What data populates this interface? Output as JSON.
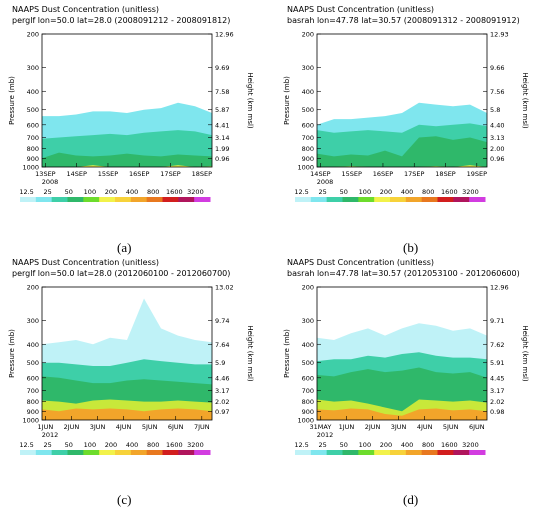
{
  "colors": {
    "levels": [
      "#bff2f7",
      "#7fe6ee",
      "#3ecfa8",
      "#2fb86a",
      "#6ddc2c",
      "#f2f24a",
      "#f7d23a",
      "#f2a52a",
      "#e8781f",
      "#d21e1e",
      "#b0155c",
      "#d23ce0"
    ]
  },
  "chart_data": [
    {
      "type": "heatmap",
      "panel_label": "(a)",
      "title": "NAAPS Dust Concentration (unitless)",
      "subtitle": "perglf lon=50.0 lat=28.0 (2008091212 - 2008091812)",
      "ylabel": "Pressure (mb)",
      "y2label": "Height (km msl)",
      "ylim": [
        1000,
        200
      ],
      "pressure_ticks": [
        "200",
        "300",
        "400",
        "500",
        "600",
        "700",
        "800",
        "900",
        "1000"
      ],
      "height_ticks": [
        "12.96",
        "9.69",
        "7.58",
        "5.87",
        "4.41",
        "3.14",
        "1.99",
        "0.96"
      ],
      "x_ticks": [
        "13SEP",
        "14SEP",
        "15SEP",
        "16SEP",
        "17SEP",
        "18SEP"
      ],
      "x_year": "2008",
      "x_positions": [
        0,
        0.1,
        0.2,
        0.3,
        0.4,
        0.5,
        0.6,
        0.7,
        0.8,
        0.9,
        1.0
      ],
      "layer_tops_mb": [
        [
          540,
          540,
          530,
          510,
          510,
          520,
          500,
          490,
          460,
          480,
          520
        ],
        [
          710,
          700,
          690,
          680,
          670,
          680,
          660,
          650,
          640,
          650,
          680
        ],
        [
          900,
          840,
          870,
          880,
          870,
          850,
          870,
          880,
          860,
          870,
          880
        ],
        [
          1000,
          1000,
          1000,
          980,
          1000,
          1000,
          1000,
          1000,
          980,
          1000,
          990
        ]
      ],
      "legend_values": [
        "12.5",
        "25",
        "50",
        "100",
        "200",
        "400",
        "800",
        "1600",
        "3200"
      ]
    },
    {
      "type": "heatmap",
      "panel_label": "(b)",
      "title": "NAAPS Dust Concentration (unitless)",
      "subtitle": "basrah lon=47.78 lat=30.57 (2008091312 - 2008091912)",
      "ylabel": "Pressure (mb)",
      "y2label": "Height (km msl)",
      "ylim": [
        1000,
        200
      ],
      "pressure_ticks": [
        "200",
        "300",
        "400",
        "500",
        "600",
        "700",
        "800",
        "900",
        "1000"
      ],
      "height_ticks": [
        "12.93",
        "9.66",
        "7.56",
        "5.8",
        "4.40",
        "3.13",
        "2.00",
        "0.96"
      ],
      "x_ticks": [
        "14SEP",
        "15SEP",
        "16SEP",
        "17SEP",
        "18SEP",
        "19SEP"
      ],
      "x_year": "2008",
      "x_positions": [
        0,
        0.1,
        0.2,
        0.3,
        0.4,
        0.5,
        0.6,
        0.7,
        0.8,
        0.9,
        1.0
      ],
      "layer_tops_mb": [
        [
          600,
          560,
          560,
          550,
          540,
          520,
          460,
          470,
          480,
          470,
          520
        ],
        [
          640,
          660,
          650,
          640,
          650,
          660,
          600,
          610,
          600,
          590,
          610
        ],
        [
          850,
          880,
          860,
          870,
          820,
          880,
          700,
          690,
          720,
          700,
          740
        ],
        [
          1000,
          1000,
          990,
          1000,
          1000,
          1000,
          1000,
          990,
          1000,
          980,
          1000
        ]
      ],
      "legend_values": [
        "12.5",
        "25",
        "50",
        "100",
        "200",
        "400",
        "800",
        "1600",
        "3200"
      ]
    },
    {
      "type": "heatmap",
      "panel_label": "(c)",
      "title": "NAAPS Dust Concentration (unitless)",
      "subtitle": "perglf lon=50.0 lat=28.0 (2012060100 - 2012060700)",
      "ylabel": "Pressure (mb)",
      "y2label": "Height (km msl)",
      "ylim": [
        1000,
        200
      ],
      "pressure_ticks": [
        "200",
        "300",
        "400",
        "500",
        "600",
        "700",
        "800",
        "900",
        "1000"
      ],
      "height_ticks": [
        "13.02",
        "9.74",
        "7.64",
        "5.9",
        "4.46",
        "3.17",
        "2.02",
        "0.97"
      ],
      "x_ticks": [
        "1JUN",
        "2JUN",
        "3JUN",
        "4JUN",
        "5JUN",
        "6JUN",
        "7JUN"
      ],
      "x_year": "2012",
      "x_positions": [
        0,
        0.1,
        0.2,
        0.3,
        0.4,
        0.5,
        0.6,
        0.7,
        0.8,
        0.9,
        1.0
      ],
      "layer_tops_mb": [
        [
          400,
          390,
          380,
          400,
          370,
          380,
          230,
          330,
          360,
          380,
          390
        ],
        [
          500,
          500,
          510,
          520,
          520,
          500,
          480,
          490,
          500,
          510,
          510
        ],
        [
          590,
          600,
          620,
          640,
          640,
          620,
          610,
          620,
          630,
          640,
          650
        ],
        [
          790,
          800,
          820,
          790,
          780,
          790,
          800,
          800,
          790,
          800,
          810
        ],
        [
          880,
          900,
          870,
          880,
          870,
          880,
          900,
          880,
          870,
          880,
          900
        ]
      ],
      "legend_values": [
        "12.5",
        "25",
        "50",
        "100",
        "200",
        "400",
        "800",
        "1600",
        "3200"
      ]
    },
    {
      "type": "heatmap",
      "panel_label": "(d)",
      "title": "NAAPS Dust Concentration (unitless)",
      "subtitle": "basrah lon=47.78 lat=30.57 (2012053100 - 2012060600)",
      "ylabel": "Pressure (mb)",
      "y2label": "Height (km msl)",
      "ylim": [
        1000,
        200
      ],
      "pressure_ticks": [
        "200",
        "300",
        "400",
        "500",
        "600",
        "700",
        "800",
        "900",
        "1000"
      ],
      "height_ticks": [
        "12.96",
        "9.71",
        "7.62",
        "5.91",
        "4.45",
        "3.17",
        "2.02",
        "0.98"
      ],
      "x_ticks": [
        "31MAY",
        "1JUN",
        "2JUN",
        "3JUN",
        "4JUN",
        "5JUN",
        "6JUN"
      ],
      "x_year": "2012",
      "x_positions": [
        0,
        0.1,
        0.2,
        0.3,
        0.4,
        0.5,
        0.6,
        0.7,
        0.8,
        0.9,
        1.0
      ],
      "layer_tops_mb": [
        [
          370,
          380,
          350,
          330,
          360,
          330,
          310,
          320,
          340,
          330,
          360
        ],
        [
          490,
          480,
          480,
          460,
          470,
          450,
          440,
          460,
          470,
          470,
          480
        ],
        [
          580,
          590,
          560,
          540,
          560,
          550,
          530,
          560,
          570,
          560,
          600
        ],
        [
          780,
          800,
          790,
          820,
          860,
          900,
          780,
          790,
          800,
          790,
          810
        ],
        [
          880,
          890,
          870,
          880,
          930,
          950,
          880,
          870,
          890,
          880,
          900
        ]
      ],
      "legend_values": [
        "12.5",
        "25",
        "50",
        "100",
        "200",
        "400",
        "800",
        "1600",
        "3200"
      ]
    }
  ]
}
